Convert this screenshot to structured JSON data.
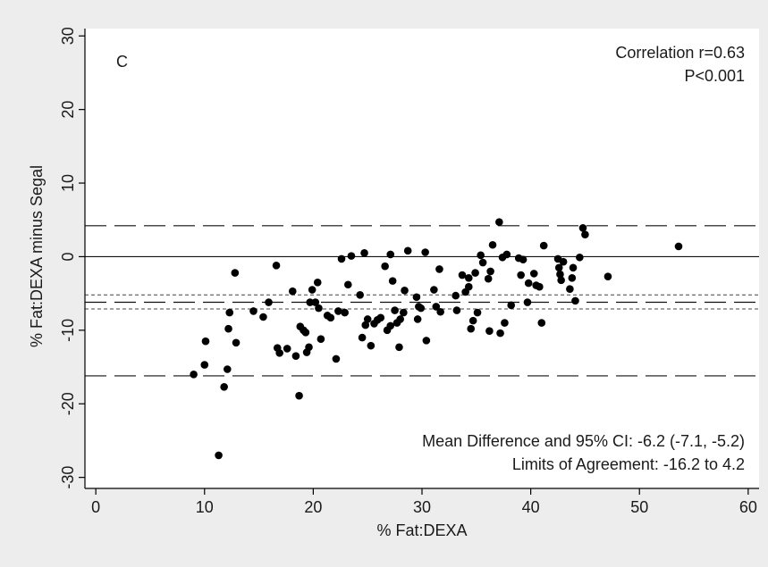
{
  "chart_data": {
    "type": "scatter",
    "panel_label": "C",
    "xlabel": "% Fat:DEXA",
    "ylabel": "% Fat:DEXA minus Segal",
    "xlim": [
      -1,
      61
    ],
    "ylim": [
      -31.5,
      31
    ],
    "xticks": [
      0,
      10,
      20,
      30,
      40,
      50,
      60
    ],
    "yticks": [
      -30,
      -20,
      -10,
      0,
      10,
      20,
      30
    ],
    "grid": false,
    "annotations": {
      "correlation": "Correlation r=0.63",
      "p_value": "P<0.001",
      "mean_difference": "Mean Difference and 95% CI: -6.2 (-7.1, -5.2)",
      "limits": "Limits of Agreement: -16.2 to 4.2"
    },
    "reference_lines": [
      {
        "kind": "zero",
        "y": 0,
        "style": "solid"
      },
      {
        "kind": "mean",
        "y": -6.2,
        "style": "long-dash"
      },
      {
        "kind": "ci_upper",
        "y": -5.2,
        "style": "short-dash"
      },
      {
        "kind": "ci_lower",
        "y": -7.1,
        "style": "short-dash"
      },
      {
        "kind": "loa_upper",
        "y": 4.2,
        "style": "long-dash"
      },
      {
        "kind": "loa_lower",
        "y": -16.2,
        "style": "long-dash"
      }
    ],
    "points": [
      [
        9.0,
        -16.0
      ],
      [
        10.0,
        -14.7
      ],
      [
        10.1,
        -11.5
      ],
      [
        11.3,
        -27.0
      ],
      [
        11.8,
        -17.7
      ],
      [
        12.1,
        -15.3
      ],
      [
        12.2,
        -9.8
      ],
      [
        12.3,
        -7.6
      ],
      [
        12.8,
        -2.2
      ],
      [
        12.9,
        -11.7
      ],
      [
        14.5,
        -7.4
      ],
      [
        15.4,
        -8.2
      ],
      [
        15.9,
        -6.2
      ],
      [
        16.6,
        -1.2
      ],
      [
        16.7,
        -12.4
      ],
      [
        16.9,
        -13.1
      ],
      [
        17.6,
        -12.5
      ],
      [
        18.1,
        -4.7
      ],
      [
        18.4,
        -13.5
      ],
      [
        18.7,
        -18.9
      ],
      [
        18.8,
        -9.5
      ],
      [
        19.1,
        -10.0
      ],
      [
        19.3,
        -10.3
      ],
      [
        19.4,
        -13.0
      ],
      [
        19.6,
        -12.3
      ],
      [
        19.7,
        -6.2
      ],
      [
        19.9,
        -4.5
      ],
      [
        20.2,
        -6.2
      ],
      [
        20.4,
        -3.5
      ],
      [
        20.5,
        -7.0
      ],
      [
        20.7,
        -11.2
      ],
      [
        21.3,
        -8.0
      ],
      [
        21.6,
        -8.3
      ],
      [
        22.1,
        -13.9
      ],
      [
        22.3,
        -7.4
      ],
      [
        22.6,
        -0.3
      ],
      [
        22.9,
        -7.6
      ],
      [
        23.2,
        -3.8
      ],
      [
        23.5,
        0.1
      ],
      [
        24.3,
        -5.2
      ],
      [
        24.5,
        -11.0
      ],
      [
        24.7,
        0.5
      ],
      [
        24.8,
        -9.3
      ],
      [
        25.0,
        -8.5
      ],
      [
        25.3,
        -12.1
      ],
      [
        25.6,
        -9.1
      ],
      [
        25.9,
        -8.6
      ],
      [
        26.2,
        -8.3
      ],
      [
        26.6,
        -1.3
      ],
      [
        26.8,
        -10.0
      ],
      [
        27.1,
        -9.4
      ],
      [
        27.1,
        0.3
      ],
      [
        27.3,
        -3.3
      ],
      [
        27.5,
        -7.3
      ],
      [
        27.7,
        -9.0
      ],
      [
        27.9,
        -12.3
      ],
      [
        28.0,
        -8.5
      ],
      [
        28.3,
        -7.6
      ],
      [
        28.4,
        -4.6
      ],
      [
        28.7,
        0.8
      ],
      [
        29.5,
        -5.5
      ],
      [
        29.6,
        -8.5
      ],
      [
        29.7,
        -6.8
      ],
      [
        29.9,
        -7.0
      ],
      [
        30.3,
        0.6
      ],
      [
        30.4,
        -11.4
      ],
      [
        31.1,
        -4.5
      ],
      [
        31.3,
        -6.8
      ],
      [
        31.6,
        -1.7
      ],
      [
        31.7,
        -7.5
      ],
      [
        33.1,
        -5.3
      ],
      [
        33.2,
        -7.3
      ],
      [
        33.7,
        -2.5
      ],
      [
        34.0,
        -4.8
      ],
      [
        34.3,
        -4.1
      ],
      [
        34.3,
        -2.9
      ],
      [
        34.5,
        -9.8
      ],
      [
        34.7,
        -8.7
      ],
      [
        34.9,
        -2.2
      ],
      [
        35.1,
        -7.6
      ],
      [
        35.4,
        0.2
      ],
      [
        35.6,
        -0.8
      ],
      [
        36.1,
        -3.0
      ],
      [
        36.2,
        -10.1
      ],
      [
        36.3,
        -2.0
      ],
      [
        36.5,
        1.6
      ],
      [
        37.1,
        4.7
      ],
      [
        37.2,
        -10.4
      ],
      [
        37.4,
        -0.1
      ],
      [
        37.6,
        -9.0
      ],
      [
        37.8,
        0.3
      ],
      [
        38.2,
        -6.6
      ],
      [
        38.9,
        -0.2
      ],
      [
        39.1,
        -2.5
      ],
      [
        39.3,
        -0.4
      ],
      [
        39.7,
        -6.2
      ],
      [
        39.8,
        -3.6
      ],
      [
        40.3,
        -2.3
      ],
      [
        40.5,
        -3.9
      ],
      [
        40.8,
        -4.1
      ],
      [
        41.0,
        -9.0
      ],
      [
        41.2,
        1.5
      ],
      [
        42.5,
        -0.3
      ],
      [
        42.6,
        -1.5
      ],
      [
        42.7,
        -2.4
      ],
      [
        42.8,
        -3.2
      ],
      [
        43.0,
        -0.7
      ],
      [
        43.6,
        -4.4
      ],
      [
        43.8,
        -2.9
      ],
      [
        43.9,
        -1.5
      ],
      [
        44.1,
        -6.0
      ],
      [
        44.5,
        -0.1
      ],
      [
        44.8,
        3.9
      ],
      [
        45.0,
        3.0
      ],
      [
        47.1,
        -2.7
      ],
      [
        53.6,
        1.4
      ]
    ]
  }
}
